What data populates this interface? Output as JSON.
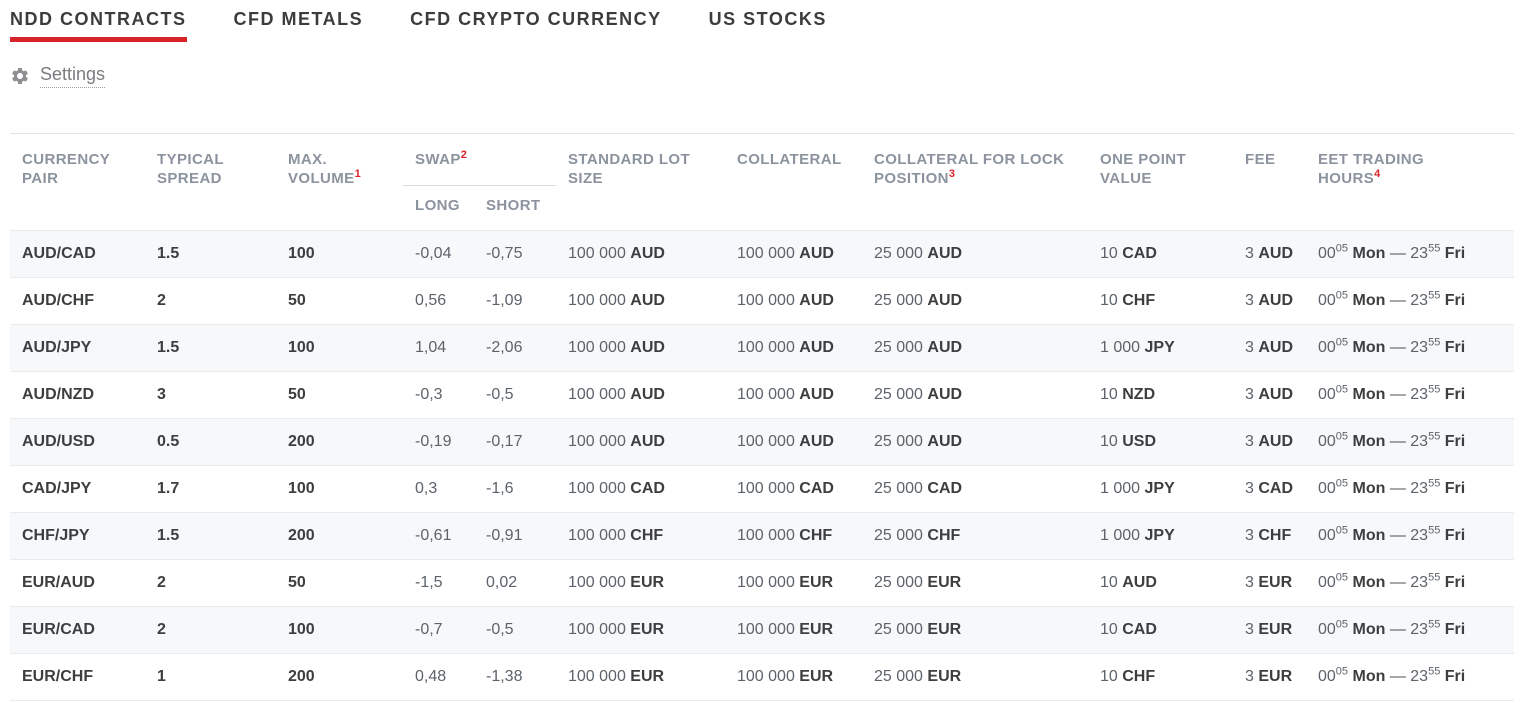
{
  "colors": {
    "accent_red": "#d8232a",
    "header_gray": "#8b939e",
    "stripe": "#f7f8f9"
  },
  "tabs": [
    {
      "label": "NDD CONTRACTS",
      "active": true
    },
    {
      "label": "CFD METALS",
      "active": false
    },
    {
      "label": "CFD CRYPTO CURRENCY",
      "active": false
    },
    {
      "label": "US STOCKS",
      "active": false
    }
  ],
  "settings": {
    "label": "Settings",
    "icon": "gear-icon"
  },
  "table": {
    "columns": {
      "currency_pair": {
        "label": "CURRENCY\nPAIR"
      },
      "typical_spread": {
        "label": "TYPICAL\nSPREAD"
      },
      "max_volume": {
        "label": "MAX.\nVOLUME",
        "footnote": "1"
      },
      "swap": {
        "label": "SWAP",
        "footnote": "2",
        "sub_long": "LONG",
        "sub_short": "SHORT"
      },
      "standard_lot": {
        "label": "STANDARD LOT\nSIZE"
      },
      "collateral": {
        "label": "COLLATERAL"
      },
      "collateral_lock": {
        "label": "COLLATERAL FOR LOCK\nPOSITION",
        "footnote": "3"
      },
      "one_point": {
        "label": "ONE POINT\nVALUE"
      },
      "fee": {
        "label": "FEE"
      },
      "eet_hours": {
        "label": "EET TRADING\nHOURS",
        "footnote": "4"
      }
    },
    "rows": [
      {
        "pair": "AUD/CAD",
        "typical_spread": "1.5",
        "max_volume": "100",
        "swap_long": "-0,04",
        "swap_short": "-0,75",
        "standard_lot": {
          "amount": "100 000",
          "currency": "AUD"
        },
        "collateral": {
          "amount": "100 000",
          "currency": "AUD"
        },
        "collateral_lock": {
          "amount": "25 000",
          "currency": "AUD"
        },
        "one_point_value": {
          "amount": "10",
          "currency": "CAD"
        },
        "fee": {
          "amount": "3",
          "currency": "AUD"
        },
        "eet_hours": {
          "open_time": "00",
          "open_sup": "05",
          "open_day": "Mon",
          "separator": "—",
          "close_time": "23",
          "close_sup": "55",
          "close_day": "Fri"
        }
      },
      {
        "pair": "AUD/CHF",
        "typical_spread": "2",
        "max_volume": "50",
        "swap_long": "0,56",
        "swap_short": "-1,09",
        "standard_lot": {
          "amount": "100 000",
          "currency": "AUD"
        },
        "collateral": {
          "amount": "100 000",
          "currency": "AUD"
        },
        "collateral_lock": {
          "amount": "25 000",
          "currency": "AUD"
        },
        "one_point_value": {
          "amount": "10",
          "currency": "CHF"
        },
        "fee": {
          "amount": "3",
          "currency": "AUD"
        },
        "eet_hours": {
          "open_time": "00",
          "open_sup": "05",
          "open_day": "Mon",
          "separator": "—",
          "close_time": "23",
          "close_sup": "55",
          "close_day": "Fri"
        }
      },
      {
        "pair": "AUD/JPY",
        "typical_spread": "1.5",
        "max_volume": "100",
        "swap_long": "1,04",
        "swap_short": "-2,06",
        "standard_lot": {
          "amount": "100 000",
          "currency": "AUD"
        },
        "collateral": {
          "amount": "100 000",
          "currency": "AUD"
        },
        "collateral_lock": {
          "amount": "25 000",
          "currency": "AUD"
        },
        "one_point_value": {
          "amount": "1 000",
          "currency": "JPY"
        },
        "fee": {
          "amount": "3",
          "currency": "AUD"
        },
        "eet_hours": {
          "open_time": "00",
          "open_sup": "05",
          "open_day": "Mon",
          "separator": "—",
          "close_time": "23",
          "close_sup": "55",
          "close_day": "Fri"
        }
      },
      {
        "pair": "AUD/NZD",
        "typical_spread": "3",
        "max_volume": "50",
        "swap_long": "-0,3",
        "swap_short": "-0,5",
        "standard_lot": {
          "amount": "100 000",
          "currency": "AUD"
        },
        "collateral": {
          "amount": "100 000",
          "currency": "AUD"
        },
        "collateral_lock": {
          "amount": "25 000",
          "currency": "AUD"
        },
        "one_point_value": {
          "amount": "10",
          "currency": "NZD"
        },
        "fee": {
          "amount": "3",
          "currency": "AUD"
        },
        "eet_hours": {
          "open_time": "00",
          "open_sup": "05",
          "open_day": "Mon",
          "separator": "—",
          "close_time": "23",
          "close_sup": "55",
          "close_day": "Fri"
        }
      },
      {
        "pair": "AUD/USD",
        "typical_spread": "0.5",
        "max_volume": "200",
        "swap_long": "-0,19",
        "swap_short": "-0,17",
        "standard_lot": {
          "amount": "100 000",
          "currency": "AUD"
        },
        "collateral": {
          "amount": "100 000",
          "currency": "AUD"
        },
        "collateral_lock": {
          "amount": "25 000",
          "currency": "AUD"
        },
        "one_point_value": {
          "amount": "10",
          "currency": "USD"
        },
        "fee": {
          "amount": "3",
          "currency": "AUD"
        },
        "eet_hours": {
          "open_time": "00",
          "open_sup": "05",
          "open_day": "Mon",
          "separator": "—",
          "close_time": "23",
          "close_sup": "55",
          "close_day": "Fri"
        }
      },
      {
        "pair": "CAD/JPY",
        "typical_spread": "1.7",
        "max_volume": "100",
        "swap_long": "0,3",
        "swap_short": "-1,6",
        "standard_lot": {
          "amount": "100 000",
          "currency": "CAD"
        },
        "collateral": {
          "amount": "100 000",
          "currency": "CAD"
        },
        "collateral_lock": {
          "amount": "25 000",
          "currency": "CAD"
        },
        "one_point_value": {
          "amount": "1 000",
          "currency": "JPY"
        },
        "fee": {
          "amount": "3",
          "currency": "CAD"
        },
        "eet_hours": {
          "open_time": "00",
          "open_sup": "05",
          "open_day": "Mon",
          "separator": "—",
          "close_time": "23",
          "close_sup": "55",
          "close_day": "Fri"
        }
      },
      {
        "pair": "CHF/JPY",
        "typical_spread": "1.5",
        "max_volume": "200",
        "swap_long": "-0,61",
        "swap_short": "-0,91",
        "standard_lot": {
          "amount": "100 000",
          "currency": "CHF"
        },
        "collateral": {
          "amount": "100 000",
          "currency": "CHF"
        },
        "collateral_lock": {
          "amount": "25 000",
          "currency": "CHF"
        },
        "one_point_value": {
          "amount": "1 000",
          "currency": "JPY"
        },
        "fee": {
          "amount": "3",
          "currency": "CHF"
        },
        "eet_hours": {
          "open_time": "00",
          "open_sup": "05",
          "open_day": "Mon",
          "separator": "—",
          "close_time": "23",
          "close_sup": "55",
          "close_day": "Fri"
        }
      },
      {
        "pair": "EUR/AUD",
        "typical_spread": "2",
        "max_volume": "50",
        "swap_long": "-1,5",
        "swap_short": "0,02",
        "standard_lot": {
          "amount": "100 000",
          "currency": "EUR"
        },
        "collateral": {
          "amount": "100 000",
          "currency": "EUR"
        },
        "collateral_lock": {
          "amount": "25 000",
          "currency": "EUR"
        },
        "one_point_value": {
          "amount": "10",
          "currency": "AUD"
        },
        "fee": {
          "amount": "3",
          "currency": "EUR"
        },
        "eet_hours": {
          "open_time": "00",
          "open_sup": "05",
          "open_day": "Mon",
          "separator": "—",
          "close_time": "23",
          "close_sup": "55",
          "close_day": "Fri"
        }
      },
      {
        "pair": "EUR/CAD",
        "typical_spread": "2",
        "max_volume": "100",
        "swap_long": "-0,7",
        "swap_short": "-0,5",
        "standard_lot": {
          "amount": "100 000",
          "currency": "EUR"
        },
        "collateral": {
          "amount": "100 000",
          "currency": "EUR"
        },
        "collateral_lock": {
          "amount": "25 000",
          "currency": "EUR"
        },
        "one_point_value": {
          "amount": "10",
          "currency": "CAD"
        },
        "fee": {
          "amount": "3",
          "currency": "EUR"
        },
        "eet_hours": {
          "open_time": "00",
          "open_sup": "05",
          "open_day": "Mon",
          "separator": "—",
          "close_time": "23",
          "close_sup": "55",
          "close_day": "Fri"
        }
      },
      {
        "pair": "EUR/CHF",
        "typical_spread": "1",
        "max_volume": "200",
        "swap_long": "0,48",
        "swap_short": "-1,38",
        "standard_lot": {
          "amount": "100 000",
          "currency": "EUR"
        },
        "collateral": {
          "amount": "100 000",
          "currency": "EUR"
        },
        "collateral_lock": {
          "amount": "25 000",
          "currency": "EUR"
        },
        "one_point_value": {
          "amount": "10",
          "currency": "CHF"
        },
        "fee": {
          "amount": "3",
          "currency": "EUR"
        },
        "eet_hours": {
          "open_time": "00",
          "open_sup": "05",
          "open_day": "Mon",
          "separator": "—",
          "close_time": "23",
          "close_sup": "55",
          "close_day": "Fri"
        }
      }
    ]
  }
}
